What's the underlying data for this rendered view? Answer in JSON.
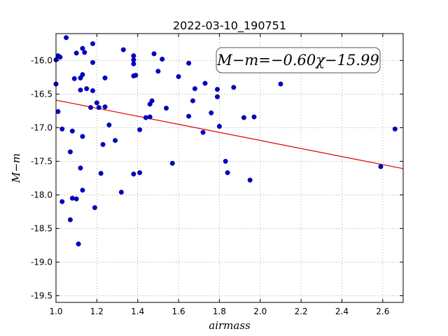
{
  "chart_data": {
    "type": "scatter",
    "title": "2022-03-10_190751",
    "xlabel": "airmass",
    "ylabel": "M−m",
    "xlim": [
      1.0,
      2.7
    ],
    "ylim": [
      -19.6,
      -15.6
    ],
    "y_inverted": true,
    "grid": true,
    "x_ticks": [
      "1.0",
      "1.2",
      "1.4",
      "1.6",
      "1.8",
      "2.0",
      "2.2",
      "2.4",
      "2.6"
    ],
    "y_ticks": [
      "-16.0",
      "-16.5",
      "-17.0",
      "-17.5",
      "-18.0",
      "-18.5",
      "-19.0",
      "-19.5"
    ],
    "annotation": "M−m=−0.60χ−15.99",
    "colors": {
      "points": "#0000cc",
      "fit_line": "#dd0000",
      "grid": "#888888"
    },
    "fit": {
      "slope": -0.6,
      "intercept": -15.99
    },
    "points": [
      [
        1.0,
        -15.99
      ],
      [
        1.0,
        -16.35
      ],
      [
        1.01,
        -15.93
      ],
      [
        1.02,
        -15.95
      ],
      [
        1.01,
        -16.76
      ],
      [
        1.03,
        -17.02
      ],
      [
        1.03,
        -18.1
      ],
      [
        1.05,
        -15.66
      ],
      [
        1.07,
        -17.36
      ],
      [
        1.07,
        -18.37
      ],
      [
        1.08,
        -17.05
      ],
      [
        1.08,
        -18.05
      ],
      [
        1.09,
        -16.27
      ],
      [
        1.1,
        -15.89
      ],
      [
        1.1,
        -18.06
      ],
      [
        1.11,
        -18.73
      ],
      [
        1.12,
        -16.44
      ],
      [
        1.12,
        -16.26
      ],
      [
        1.12,
        -17.6
      ],
      [
        1.13,
        -15.82
      ],
      [
        1.13,
        -16.21
      ],
      [
        1.13,
        -17.13
      ],
      [
        1.13,
        -17.93
      ],
      [
        1.14,
        -15.88
      ],
      [
        1.15,
        -16.42
      ],
      [
        1.17,
        -16.7
      ],
      [
        1.18,
        -15.75
      ],
      [
        1.18,
        -16.45
      ],
      [
        1.18,
        -16.03
      ],
      [
        1.19,
        -18.19
      ],
      [
        1.2,
        -16.63
      ],
      [
        1.21,
        -16.7
      ],
      [
        1.22,
        -17.68
      ],
      [
        1.23,
        -17.25
      ],
      [
        1.24,
        -16.26
      ],
      [
        1.24,
        -16.69
      ],
      [
        1.26,
        -16.96
      ],
      [
        1.29,
        -17.19
      ],
      [
        1.32,
        -17.96
      ],
      [
        1.33,
        -15.84
      ],
      [
        1.38,
        -15.93
      ],
      [
        1.38,
        -15.99
      ],
      [
        1.38,
        -16.05
      ],
      [
        1.38,
        -16.23
      ],
      [
        1.38,
        -17.69
      ],
      [
        1.39,
        -16.22
      ],
      [
        1.41,
        -17.03
      ],
      [
        1.41,
        -17.67
      ],
      [
        1.44,
        -16.85
      ],
      [
        1.46,
        -16.65
      ],
      [
        1.46,
        -16.84
      ],
      [
        1.47,
        -16.6
      ],
      [
        1.48,
        -15.9
      ],
      [
        1.5,
        -16.16
      ],
      [
        1.52,
        -15.98
      ],
      [
        1.54,
        -16.71
      ],
      [
        1.57,
        -17.53
      ],
      [
        1.6,
        -16.24
      ],
      [
        1.65,
        -16.04
      ],
      [
        1.65,
        -16.83
      ],
      [
        1.67,
        -16.6
      ],
      [
        1.68,
        -16.42
      ],
      [
        1.72,
        -17.07
      ],
      [
        1.73,
        -16.34
      ],
      [
        1.76,
        -16.78
      ],
      [
        1.79,
        -16.43
      ],
      [
        1.79,
        -16.54
      ],
      [
        1.8,
        -16.98
      ],
      [
        1.83,
        -17.5
      ],
      [
        1.84,
        -17.67
      ],
      [
        1.87,
        -16.4
      ],
      [
        1.92,
        -16.85
      ],
      [
        1.95,
        -17.78
      ],
      [
        1.97,
        -16.84
      ],
      [
        2.1,
        -16.35
      ],
      [
        2.59,
        -17.58
      ],
      [
        2.66,
        -17.02
      ]
    ]
  }
}
